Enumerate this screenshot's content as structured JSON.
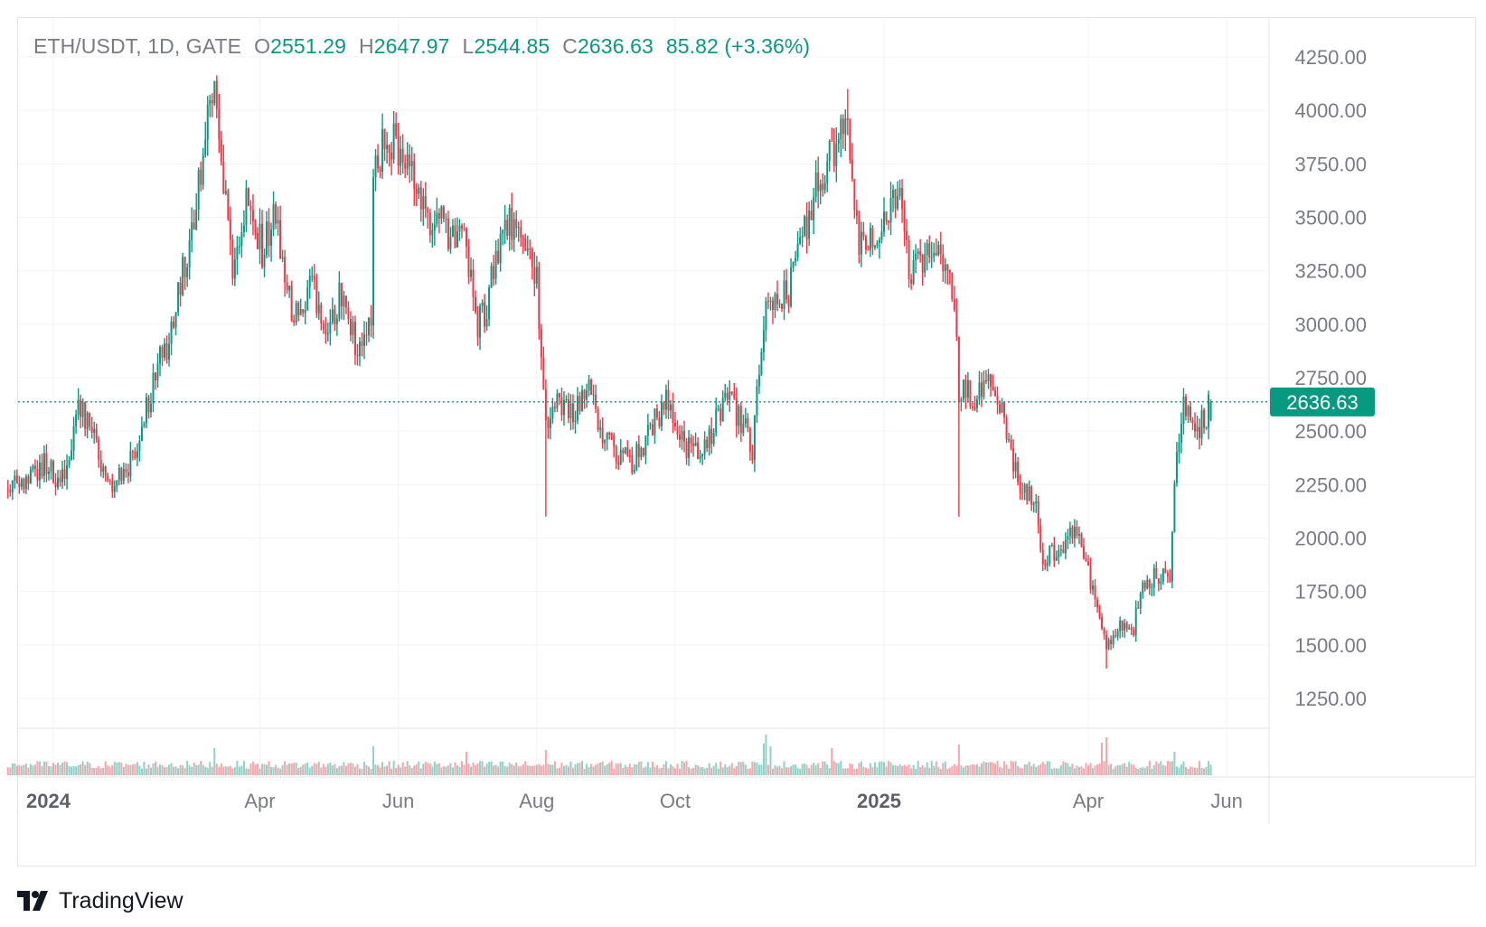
{
  "header": {
    "symbol": "ETH/USDT, 1D, GATE",
    "o_label": "O",
    "o_value": "2551.29",
    "h_label": "H",
    "h_value": "2647.97",
    "l_label": "L",
    "l_value": "2544.85",
    "c_label": "C",
    "c_value": "2636.63",
    "change": "85.82 (+3.36%)"
  },
  "brand": {
    "logo_icon": "tradingview-logo-icon",
    "name": "TradingView"
  },
  "colors": {
    "up": "#089981",
    "down": "#f23645",
    "grid": "#f0f3fa",
    "axis_text": "#787b86",
    "border": "#e0e3eb"
  },
  "chart_data": {
    "type": "candlestick",
    "symbol": "ETH/USDT",
    "interval": "1D",
    "exchange": "GATE",
    "last_price": 2636.63,
    "last_price_label": "2636.63",
    "y_axis": {
      "ticks": [
        1250,
        1500,
        1750,
        2000,
        2250,
        2500,
        2750,
        3000,
        3250,
        3500,
        3750,
        4000,
        4250
      ],
      "tick_labels": [
        "1250.00",
        "1500.00",
        "1750.00",
        "2000.00",
        "2250.00",
        "2500.00",
        "2750.00",
        "3000.00",
        "3250.00",
        "3500.00",
        "3750.00",
        "4000.00",
        "4250.00"
      ]
    },
    "x_axis": {
      "labels": [
        {
          "text": "2024",
          "date": "2024-01-01",
          "bold": true
        },
        {
          "text": "Apr",
          "date": "2024-04-01",
          "bold": false
        },
        {
          "text": "Jun",
          "date": "2024-06-01",
          "bold": false
        },
        {
          "text": "Aug",
          "date": "2024-08-01",
          "bold": false
        },
        {
          "text": "Oct",
          "date": "2024-10-01",
          "bold": false
        },
        {
          "text": "2025",
          "date": "2025-01-01",
          "bold": true
        },
        {
          "text": "Apr",
          "date": "2025-04-01",
          "bold": false
        },
        {
          "text": "Jun",
          "date": "2025-06-01",
          "bold": false
        }
      ],
      "start_date": "2023-12-12",
      "end_date": "2025-05-25"
    },
    "grid": true,
    "price_path": [
      [
        "2023-12-12",
        2230
      ],
      [
        "2023-12-20",
        2250
      ],
      [
        "2023-12-28",
        2350
      ],
      [
        "2024-01-03",
        2260
      ],
      [
        "2024-01-08",
        2350
      ],
      [
        "2024-01-12",
        2620
      ],
      [
        "2024-01-18",
        2490
      ],
      [
        "2024-01-23",
        2300
      ],
      [
        "2024-01-28",
        2260
      ],
      [
        "2024-02-02",
        2300
      ],
      [
        "2024-02-08",
        2450
      ],
      [
        "2024-02-15",
        2790
      ],
      [
        "2024-02-22",
        2950
      ],
      [
        "2024-02-28",
        3300
      ],
      [
        "2024-03-04",
        3550
      ],
      [
        "2024-03-08",
        3900
      ],
      [
        "2024-03-12",
        4050
      ],
      [
        "2024-03-16",
        3700
      ],
      [
        "2024-03-20",
        3200
      ],
      [
        "2024-03-26",
        3600
      ],
      [
        "2024-04-02",
        3350
      ],
      [
        "2024-04-08",
        3500
      ],
      [
        "2024-04-13",
        3150
      ],
      [
        "2024-04-18",
        3000
      ],
      [
        "2024-04-24",
        3200
      ],
      [
        "2024-05-01",
        2950
      ],
      [
        "2024-05-06",
        3120
      ],
      [
        "2024-05-14",
        2900
      ],
      [
        "2024-05-20",
        3050
      ],
      [
        "2024-05-21",
        3700
      ],
      [
        "2024-05-27",
        3880
      ],
      [
        "2024-06-04",
        3800
      ],
      [
        "2024-06-09",
        3700
      ],
      [
        "2024-06-14",
        3500
      ],
      [
        "2024-06-21",
        3480
      ],
      [
        "2024-06-25",
        3380
      ],
      [
        "2024-07-01",
        3400
      ],
      [
        "2024-07-05",
        3000
      ],
      [
        "2024-07-09",
        3050
      ],
      [
        "2024-07-15",
        3350
      ],
      [
        "2024-07-20",
        3500
      ],
      [
        "2024-07-28",
        3300
      ],
      [
        "2024-08-01",
        3200
      ],
      [
        "2024-08-05",
        2550
      ],
      [
        "2024-08-10",
        2650
      ],
      [
        "2024-08-17",
        2600
      ],
      [
        "2024-08-24",
        2700
      ],
      [
        "2024-08-29",
        2500
      ],
      [
        "2024-09-05",
        2400
      ],
      [
        "2024-09-12",
        2350
      ],
      [
        "2024-09-20",
        2500
      ],
      [
        "2024-09-27",
        2650
      ],
      [
        "2024-10-03",
        2450
      ],
      [
        "2024-10-10",
        2400
      ],
      [
        "2024-10-17",
        2500
      ],
      [
        "2024-10-24",
        2650
      ],
      [
        "2024-10-30",
        2550
      ],
      [
        "2024-11-04",
        2420
      ],
      [
        "2024-11-06",
        2700
      ],
      [
        "2024-11-10",
        3150
      ],
      [
        "2024-11-14",
        3100
      ],
      [
        "2024-11-20",
        3150
      ],
      [
        "2024-11-27",
        3450
      ],
      [
        "2024-12-04",
        3700
      ],
      [
        "2024-12-10",
        3800
      ],
      [
        "2024-12-16",
        3950
      ],
      [
        "2024-12-21",
        3400
      ],
      [
        "2024-12-27",
        3400
      ],
      [
        "2025-01-03",
        3500
      ],
      [
        "2025-01-07",
        3650
      ],
      [
        "2025-01-12",
        3250
      ],
      [
        "2025-01-18",
        3300
      ],
      [
        "2025-01-25",
        3350
      ],
      [
        "2025-02-01",
        3100
      ],
      [
        "2025-02-03",
        2700
      ],
      [
        "2025-02-10",
        2650
      ],
      [
        "2025-02-18",
        2750
      ],
      [
        "2025-02-24",
        2500
      ],
      [
        "2025-03-01",
        2250
      ],
      [
        "2025-03-08",
        2200
      ],
      [
        "2025-03-12",
        1900
      ],
      [
        "2025-03-20",
        1950
      ],
      [
        "2025-03-26",
        2050
      ],
      [
        "2025-04-02",
        1800
      ],
      [
        "2025-04-06",
        1600
      ],
      [
        "2025-04-09",
        1500
      ],
      [
        "2025-04-15",
        1600
      ],
      [
        "2025-04-21",
        1580
      ],
      [
        "2025-04-24",
        1780
      ],
      [
        "2025-05-01",
        1820
      ],
      [
        "2025-05-07",
        1820
      ],
      [
        "2025-05-09",
        2300
      ],
      [
        "2025-05-13",
        2620
      ],
      [
        "2025-05-18",
        2500
      ],
      [
        "2025-05-22",
        2550
      ],
      [
        "2025-05-25",
        2636.63
      ]
    ],
    "volume_spikes": [
      [
        "2024-03-12",
        3.0
      ],
      [
        "2024-05-21",
        3.2
      ],
      [
        "2024-07-01",
        2.6
      ],
      [
        "2024-08-05",
        2.8
      ],
      [
        "2024-11-09",
        3.5
      ],
      [
        "2024-11-10",
        4.5
      ],
      [
        "2024-11-12",
        3.2
      ],
      [
        "2024-12-09",
        3.0
      ],
      [
        "2025-02-03",
        3.4
      ],
      [
        "2025-04-07",
        3.6
      ],
      [
        "2025-04-09",
        4.2
      ],
      [
        "2025-05-09",
        2.6
      ]
    ]
  }
}
